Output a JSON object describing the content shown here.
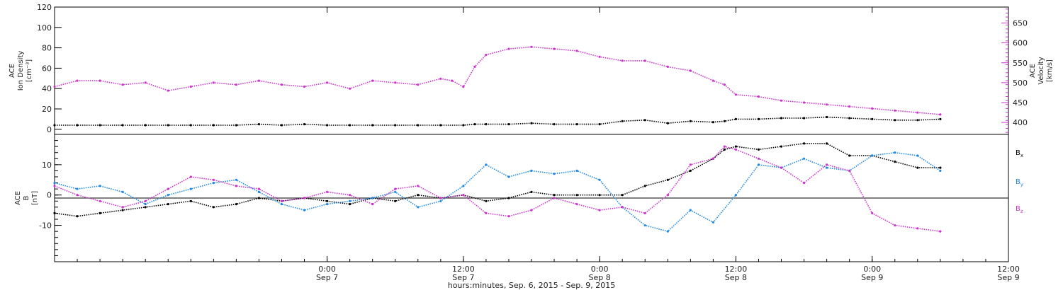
{
  "chart_data": [
    {
      "type": "scatter",
      "panel": "top",
      "ylabel_left": [
        "ACE",
        "Ion Density",
        "[cm⁻³]"
      ],
      "ylabel_right": [
        "ACE",
        "Velocity",
        "[km/s]"
      ],
      "ylim_left": [
        -5,
        120
      ],
      "yticks_left": [
        0,
        20,
        40,
        60,
        80,
        100,
        120
      ],
      "ylim_right": [
        370,
        690
      ],
      "yticks_right": [
        400,
        450,
        500,
        550,
        600,
        650
      ],
      "colors": {
        "density": "#000000",
        "velocity": "#cc33cc"
      },
      "series": [
        {
          "name": "",
          "axis": "left",
          "color": "#000000",
          "x": [
            -24,
            -22,
            -20,
            -18,
            -16,
            -14,
            -12,
            -10,
            -8,
            -6,
            -4,
            -2,
            0,
            2,
            4,
            6,
            8,
            10,
            12,
            13,
            14,
            16,
            18,
            20,
            22,
            24,
            26,
            28,
            30,
            32,
            34,
            35,
            36,
            38,
            40,
            42,
            44,
            46,
            48,
            50,
            52,
            54
          ],
          "y": [
            4,
            4,
            4,
            4,
            4,
            4,
            4,
            4,
            4,
            5,
            4,
            5,
            4,
            4,
            4,
            4,
            4,
            4,
            4,
            5,
            5,
            5,
            6,
            5,
            5,
            5,
            8,
            9,
            6,
            8,
            7,
            8,
            10,
            10,
            11,
            11,
            12,
            11,
            10,
            9,
            9,
            10
          ]
        },
        {
          "name": "",
          "axis": "right",
          "color": "#cc33cc",
          "x": [
            -24,
            -22,
            -20,
            -18,
            -16,
            -14,
            -12,
            -10,
            -8,
            -6,
            -4,
            -2,
            0,
            2,
            4,
            6,
            8,
            10,
            11,
            12,
            13,
            14,
            16,
            18,
            20,
            22,
            24,
            26,
            28,
            30,
            32,
            34,
            35,
            36,
            38,
            40,
            42,
            44,
            46,
            48,
            50,
            52,
            54
          ],
          "y": [
            490,
            505,
            505,
            495,
            500,
            480,
            490,
            500,
            495,
            505,
            495,
            490,
            500,
            485,
            505,
            500,
            495,
            510,
            505,
            490,
            540,
            570,
            585,
            590,
            585,
            580,
            565,
            555,
            555,
            540,
            530,
            505,
            495,
            470,
            465,
            455,
            450,
            445,
            440,
            435,
            430,
            425,
            420
          ]
        }
      ]
    },
    {
      "type": "scatter",
      "panel": "bottom",
      "ylabel_left": [
        "ACE",
        "B",
        "[nT]"
      ],
      "ylim": [
        -22,
        20
      ],
      "yticks": [
        -10,
        0,
        10
      ],
      "zero_line": true,
      "series": [
        {
          "name": "Bx",
          "color": "#000000",
          "x": [
            -24,
            -22,
            -20,
            -18,
            -16,
            -14,
            -12,
            -10,
            -8,
            -6,
            -4,
            -2,
            0,
            2,
            4,
            6,
            8,
            10,
            12,
            14,
            16,
            18,
            20,
            22,
            24,
            26,
            28,
            30,
            32,
            34,
            35,
            36,
            38,
            40,
            42,
            44,
            46,
            48,
            50,
            52,
            54
          ],
          "y": [
            -6,
            -7,
            -6,
            -5,
            -4,
            -3,
            -2,
            -4,
            -3,
            -1,
            -2,
            -1,
            -2,
            -3,
            -1,
            -2,
            0,
            -1,
            0,
            -2,
            -1,
            1,
            0,
            0,
            0,
            0,
            3,
            5,
            8,
            12,
            15,
            16,
            15,
            16,
            17,
            17,
            13,
            13,
            11,
            9,
            9
          ]
        },
        {
          "name": "By",
          "color": "#1e88e5",
          "x": [
            -24,
            -22,
            -20,
            -18,
            -16,
            -14,
            -12,
            -10,
            -8,
            -6,
            -4,
            -2,
            0,
            2,
            4,
            6,
            8,
            10,
            12,
            14,
            16,
            18,
            20,
            22,
            24,
            26,
            28,
            30,
            32,
            34,
            36,
            38,
            40,
            42,
            44,
            46,
            48,
            50,
            52,
            54
          ],
          "y": [
            4,
            2,
            3,
            1,
            -3,
            0,
            2,
            4,
            5,
            1,
            -3,
            -5,
            -3,
            -2,
            -1,
            1,
            -4,
            -2,
            3,
            10,
            6,
            8,
            7,
            8,
            5,
            -4,
            -10,
            -12,
            -5,
            -9,
            0,
            10,
            9,
            12,
            9,
            8,
            13,
            14,
            13,
            8
          ]
        },
        {
          "name": "Bz",
          "color": "#cc33cc",
          "x": [
            -24,
            -22,
            -20,
            -18,
            -16,
            -14,
            -12,
            -10,
            -8,
            -6,
            -4,
            -2,
            0,
            2,
            4,
            6,
            8,
            10,
            12,
            14,
            16,
            18,
            20,
            22,
            24,
            26,
            28,
            30,
            32,
            34,
            35,
            36,
            38,
            40,
            42,
            44,
            46,
            48,
            50,
            52,
            54
          ],
          "y": [
            3,
            0,
            -2,
            -4,
            -2,
            2,
            6,
            5,
            3,
            2,
            -2,
            -1,
            1,
            0,
            -3,
            2,
            3,
            -1,
            0,
            -6,
            -7,
            -5,
            -1,
            -3,
            -5,
            -4,
            -6,
            0,
            10,
            12,
            16,
            15,
            12,
            9,
            4,
            10,
            8,
            -6,
            -10,
            -11,
            -12
          ]
        }
      ]
    }
  ],
  "x_axis": {
    "xlim": [
      -24,
      60
    ],
    "ticks": [
      {
        "time": "0:00",
        "date": "Sep 7",
        "x": 0
      },
      {
        "time": "12:00",
        "date": "Sep 7",
        "x": 12
      },
      {
        "time": "0:00",
        "date": "Sep 8",
        "x": 24
      },
      {
        "time": "12:00",
        "date": "Sep 8",
        "x": 36
      },
      {
        "time": "0:00",
        "date": "Sep 9",
        "x": 48
      },
      {
        "time": "12:00",
        "date": "Sep 9",
        "x": 60
      }
    ],
    "xlabel": "hours:minutes, Sep. 6, 2015 - Sep. 9, 2015"
  },
  "legend": {
    "Bx": {
      "base": "B",
      "sub": "x"
    },
    "By": {
      "base": "B",
      "sub": "y"
    },
    "Bz": {
      "base": "B",
      "sub": "z"
    }
  }
}
